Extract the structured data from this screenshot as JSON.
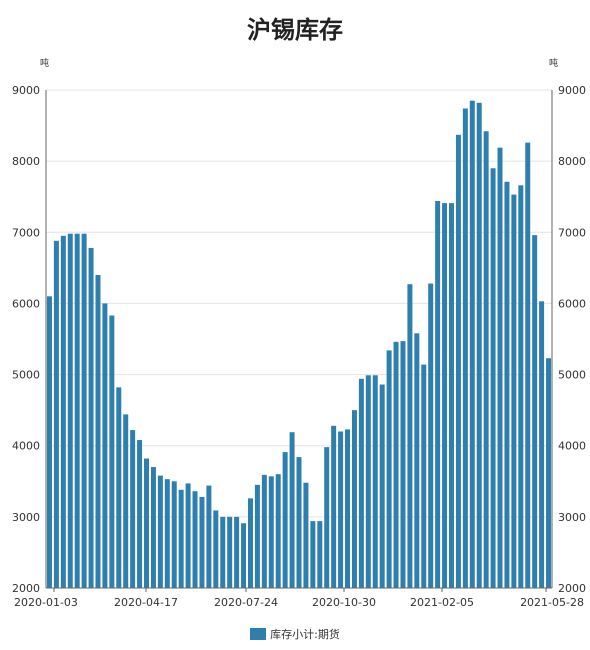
{
  "chart_data": {
    "type": "bar",
    "title": "沪锡库存",
    "ylabel_left": "吨",
    "ylabel_right": "吨",
    "ylim": [
      2000,
      9000
    ],
    "yticks": [
      2000,
      3000,
      4000,
      5000,
      6000,
      7000,
      8000,
      9000
    ],
    "x_tick_labels": [
      "2020-01-03",
      "2020-04-17",
      "2020-07-24",
      "2020-10-30",
      "2021-02-05",
      "2021-05-28"
    ],
    "grid": true,
    "legend_position": "bottom",
    "series": [
      {
        "name": "库存小计:期货",
        "color": "#2e7fae",
        "values": [
          6100,
          6880,
          6950,
          6980,
          6980,
          6980,
          6780,
          6400,
          6000,
          5830,
          4820,
          4440,
          4220,
          4080,
          3820,
          3700,
          3580,
          3530,
          3500,
          3380,
          3470,
          3360,
          3280,
          3440,
          3090,
          3000,
          3000,
          3000,
          2910,
          3260,
          3450,
          3590,
          3570,
          3600,
          3910,
          4190,
          3840,
          3480,
          2940,
          2940,
          3980,
          4280,
          4200,
          4230,
          4500,
          4940,
          4990,
          4990,
          4860,
          5340,
          5460,
          5470,
          6270,
          5580,
          5140,
          6280,
          7440,
          7410,
          7410,
          8370,
          8740,
          8850,
          8820,
          8420,
          7900,
          8190,
          7710,
          7530,
          7660,
          8260,
          6960,
          6030,
          5230
        ]
      }
    ]
  }
}
